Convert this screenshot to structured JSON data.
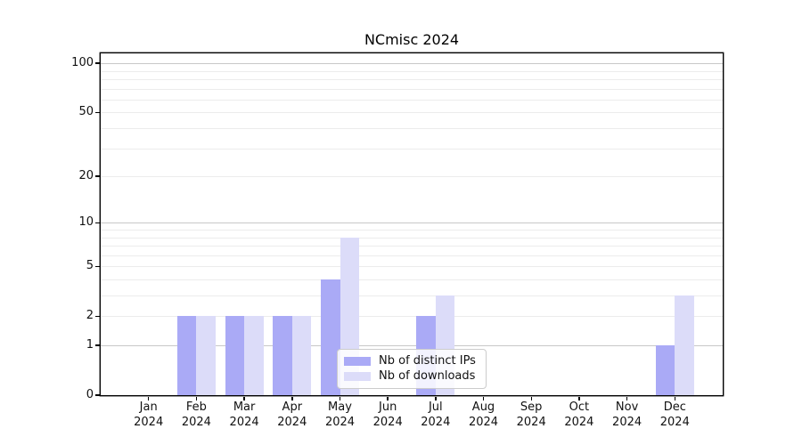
{
  "chart_data": {
    "type": "bar",
    "title": "NCmisc 2024",
    "x_categories": [
      "Jan",
      "Feb",
      "Mar",
      "Apr",
      "May",
      "Jun",
      "Jul",
      "Aug",
      "Sep",
      "Oct",
      "Nov",
      "Dec"
    ],
    "x_sublabel": "2024",
    "series": [
      {
        "name": "Nb of distinct IPs",
        "color": "#aaaaf6",
        "values": [
          0,
          2,
          2,
          2,
          4,
          0,
          2,
          0,
          0,
          0,
          0,
          1
        ]
      },
      {
        "name": "Nb of downloads",
        "color": "#dcdcf9",
        "values": [
          0,
          2,
          2,
          2,
          8,
          0,
          3,
          0,
          0,
          0,
          0,
          3
        ]
      }
    ],
    "y_axis": {
      "scale": "log1p",
      "tick_values": [
        0,
        1,
        2,
        5,
        10,
        20,
        50,
        100
      ],
      "major_grid_values": [
        1,
        10,
        100
      ],
      "minor_grid_values": [
        2,
        3,
        4,
        5,
        6,
        7,
        8,
        9,
        20,
        30,
        40,
        50,
        60,
        70,
        80,
        90
      ],
      "top_value": 115
    },
    "grid": "on",
    "legend_position": "inside-bottom-center"
  },
  "colors": {
    "axis": "#000000",
    "grid_major": "#c8c8c8",
    "grid_minor": "#ececec",
    "legend_border": "#cccccc"
  }
}
